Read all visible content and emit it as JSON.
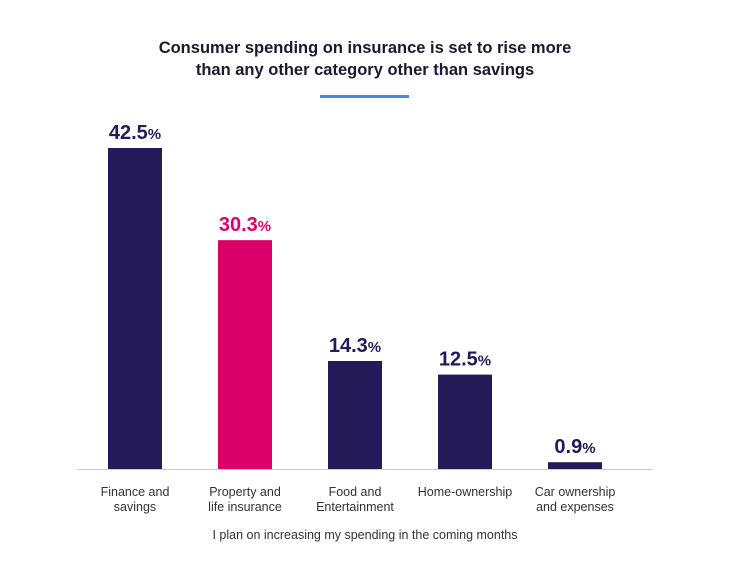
{
  "title_lines": [
    "Consumer spending on insurance is set to rise more",
    "than any other category other than savings"
  ],
  "colors": {
    "primary": "#241a57",
    "highlight": "#db0069",
    "accent": "#4a86e8",
    "axis": "#cccccc"
  },
  "chart_data": {
    "type": "bar",
    "title": "Consumer spending on insurance is set to rise more than any other category other than savings",
    "xlabel": "I plan on increasing my spending in the coming months",
    "ylabel": "",
    "ylim": [
      0,
      42.5
    ],
    "categories": [
      [
        "Finance and",
        "savings"
      ],
      [
        "Property and",
        "life insurance"
      ],
      [
        "Food and",
        "Entertainment"
      ],
      [
        "Home-ownership"
      ],
      [
        "Car ownership",
        "and expenses"
      ]
    ],
    "values": [
      42.5,
      30.3,
      14.3,
      12.5,
      0.9
    ],
    "value_labels": [
      "42.5",
      "30.3",
      "14.3",
      "12.5",
      "0.9"
    ],
    "unit": "%",
    "highlight_index": 1
  }
}
